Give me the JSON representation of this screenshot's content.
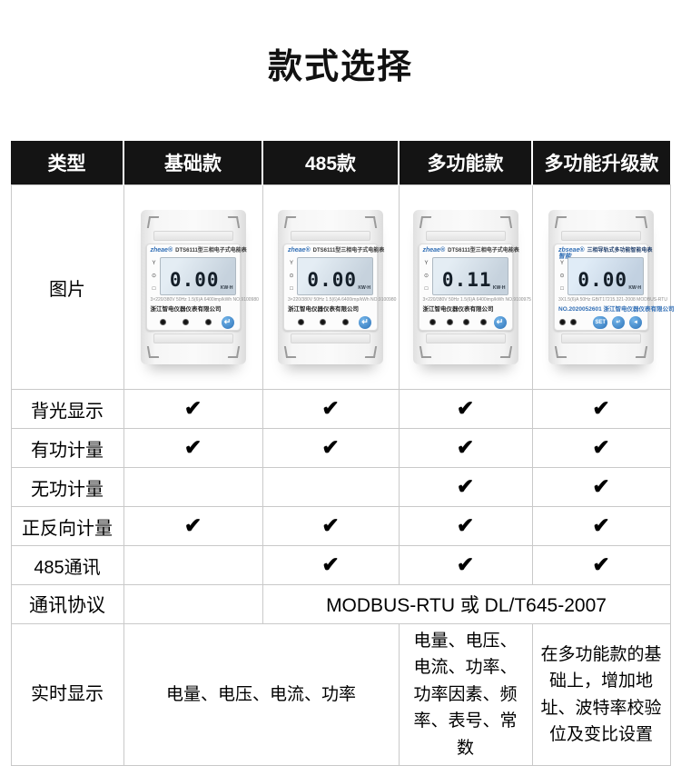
{
  "page": {
    "title": "款式选择"
  },
  "colors": {
    "header_bg": "#141414",
    "header_text": "#ffffff",
    "table_border": "#c9c9c9",
    "check": "#000000",
    "brand_blue": "#2f6db5",
    "lcd_bg": "#c6d2dd",
    "meter_body": "#f3f3f3"
  },
  "table": {
    "check_glyph": "✔",
    "header": [
      "类型",
      "基础款",
      "485款",
      "多功能款",
      "多功能升级款"
    ],
    "rows": [
      {
        "label": "图片",
        "type": "images"
      },
      {
        "label": "背光显示",
        "checks": [
          true,
          true,
          true,
          true
        ]
      },
      {
        "label": "有功计量",
        "checks": [
          true,
          true,
          true,
          true
        ]
      },
      {
        "label": "无功计量",
        "checks": [
          false,
          false,
          true,
          true
        ]
      },
      {
        "label": "正反向计量",
        "checks": [
          true,
          true,
          true,
          true
        ]
      },
      {
        "label": "485通讯",
        "checks": [
          false,
          true,
          true,
          true
        ]
      },
      {
        "label": "通讯协议",
        "type": "protocol",
        "cells": [
          {
            "text": "",
            "span": 1
          },
          {
            "text": "MODBUS-RTU 或 DL/T645-2007",
            "span": 3
          }
        ]
      },
      {
        "label": "实时显示",
        "type": "display",
        "cells": [
          {
            "text": "电量、电压、电流、功率",
            "span": 2
          },
          {
            "text": "电量、电压、电流、功率、功率因素、频率、表号、常数",
            "span": 1
          },
          {
            "text": "在多功能款的基础上，增加地址、波特率校验位及变比设置",
            "span": 1
          }
        ]
      }
    ]
  },
  "meters": [
    {
      "variant": "standard",
      "brand": "zheae®",
      "model_title": "DTS6111型三相电子式电能表",
      "side_icons": [
        "Y",
        "⊙",
        "□"
      ],
      "lcd_value": "0.00",
      "lcd_unit": "KW·H",
      "spec": "3×220/380V 50Hz 1.5(6)A 6400imp/kWh NO.9100980",
      "company": "浙江智电仪器仪表有限公司",
      "indicator_count": 3,
      "buttons": [
        "↵"
      ]
    },
    {
      "variant": "standard",
      "brand": "zheae®",
      "model_title": "DTS6111型三相电子式电能表",
      "side_icons": [
        "Y",
        "⊙",
        "□"
      ],
      "lcd_value": "0.00",
      "lcd_unit": "KW·H",
      "spec": "3×220/380V 50Hz 1.5(6)A 6400imp/kWh NO.9100980",
      "company": "浙江智电仪器仪表有限公司",
      "indicator_count": 3,
      "buttons": [
        "↵"
      ]
    },
    {
      "variant": "standard",
      "brand": "zheae®",
      "model_title": "DTS6111型三相电子式电能表",
      "side_icons": [
        "Y",
        "⊙",
        "□"
      ],
      "lcd_value": "0.11",
      "lcd_unit": "KW·H",
      "spec": "3×220/380V 50Hz 1.5(6)A 6400imp/kWh NO.9100975",
      "company": "浙江智电仪器仪表有限公司",
      "indicator_count": 4,
      "buttons": [
        "↵"
      ]
    },
    {
      "variant": "smart",
      "brand": "zbseae®智能",
      "model_title": "三相导轨式多功能智能电表",
      "side_icons": [
        "Y",
        "⊙",
        "□"
      ],
      "lcd_value": "0.00",
      "lcd_unit": "KW·H",
      "spec": "3X1.5(6)A 50Hz GB/T17215.321-2008 MODBUS-RTU",
      "company": "NO.2020052601 浙江智电仪器仪表有限公司",
      "indicator_count": 2,
      "buttons": [
        "SET",
        "↵",
        "◄"
      ]
    }
  ]
}
